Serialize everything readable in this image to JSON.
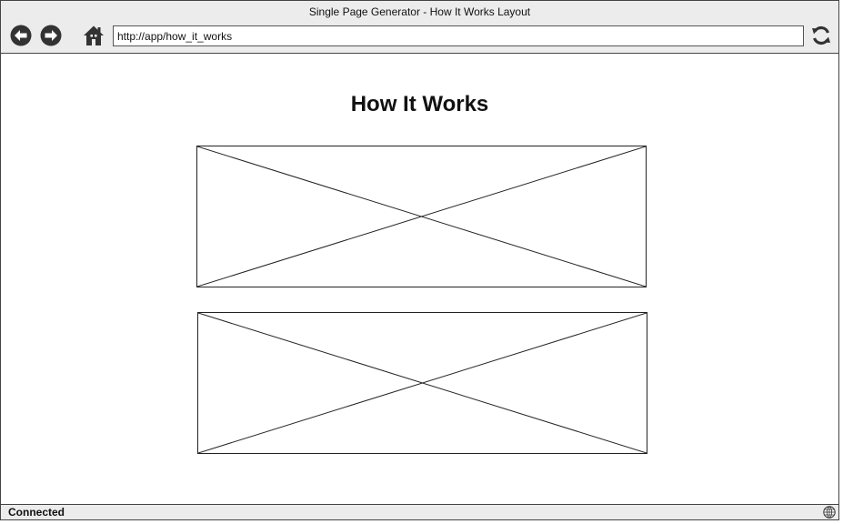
{
  "window": {
    "title": "Single Page Generator - How It Works Layout"
  },
  "toolbar": {
    "back_icon": "back-arrow-icon",
    "forward_icon": "forward-arrow-icon",
    "home_icon": "home-icon",
    "reload_icon": "reload-icon",
    "url": "http://app/how_it_works"
  },
  "page": {
    "title": "How It Works",
    "image_placeholders": [
      {
        "icon": "image-placeholder"
      },
      {
        "icon": "image-placeholder"
      }
    ]
  },
  "statusbar": {
    "status": "Connected",
    "icon": "globe-icon"
  },
  "colors": {
    "chrome": "#ececec",
    "border": "#444444",
    "icon": "#333333"
  }
}
